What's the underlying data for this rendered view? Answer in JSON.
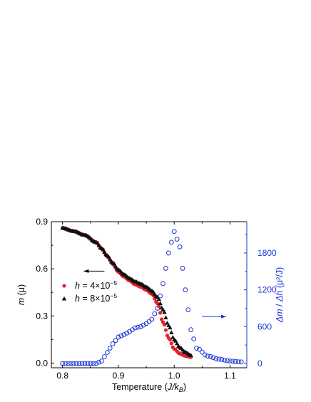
{
  "chart_data": {
    "type": "scatter",
    "xlabel": {
      "prefix": "Temperature  (",
      "italic": "J/k",
      "sub": "B",
      "suffix": ")"
    },
    "ylabel_left": {
      "italic": "m",
      "rest": " (μ)"
    },
    "ylabel_right": {
      "italic1": "Δm",
      "mid": " / ",
      "italic2": "Δh",
      "rest": " (μ²/J)"
    },
    "xlim": [
      0.78,
      1.13
    ],
    "ylim_left": [
      -0.03,
      0.9
    ],
    "ylim_right": [
      -70,
      2310
    ],
    "xticks": [
      {
        "value": 0.8,
        "label": "0.8"
      },
      {
        "value": 0.9,
        "label": "0.9"
      },
      {
        "value": 1.0,
        "label": "1.0"
      },
      {
        "value": 1.1,
        "label": "1.1"
      }
    ],
    "yticks_left": [
      {
        "value": 0.0,
        "label": "0.0"
      },
      {
        "value": 0.3,
        "label": "0.3"
      },
      {
        "value": 0.6,
        "label": "0.6"
      },
      {
        "value": 0.9,
        "label": "0.9"
      }
    ],
    "yticks_right": [
      {
        "value": 0,
        "label": "0"
      },
      {
        "value": 600,
        "label": "600"
      },
      {
        "value": 1200,
        "label": "1200"
      },
      {
        "value": 1800,
        "label": "1800"
      }
    ],
    "legend": [
      {
        "label_italic": "h",
        "label_text": " = 4×10",
        "label_sup": "−5",
        "color": "#e8202a",
        "marker": "circle-filled"
      },
      {
        "label_italic": "h",
        "label_text": " = 8×10",
        "label_sup": "−5",
        "color": "#111111",
        "marker": "triangle-filled"
      }
    ],
    "annotations": [
      {
        "type": "arrow",
        "direction": "left",
        "axis": "left",
        "x_from": 0.875,
        "x_to": 0.838,
        "y": 0.585,
        "color": "#000000"
      },
      {
        "type": "arrow",
        "direction": "right",
        "axis": "right",
        "x_from": 1.05,
        "x_to": 1.093,
        "y": 765,
        "color": "#1a35d6"
      }
    ],
    "series": [
      {
        "name": "h = 4×10−5",
        "axis": "left",
        "marker": "circle-filled",
        "color": "#e8202a",
        "x": [
          0.8,
          0.82,
          0.84,
          0.86,
          0.87,
          0.88,
          0.89,
          0.9,
          0.91,
          0.92,
          0.93,
          0.94,
          0.95,
          0.96,
          0.97,
          0.98,
          0.99,
          1.0,
          1.01,
          1.02,
          1.03
        ],
        "y": [
          0.86,
          0.84,
          0.815,
          0.77,
          0.73,
          0.68,
          0.63,
          0.58,
          0.55,
          0.525,
          0.5,
          0.485,
          0.465,
          0.44,
          0.38,
          0.26,
          0.16,
          0.09,
          0.06,
          0.045,
          0.038
        ]
      },
      {
        "name": "h = 8×10−5",
        "axis": "left",
        "marker": "triangle-filled",
        "color": "#111111",
        "x": [
          0.8,
          0.82,
          0.84,
          0.86,
          0.87,
          0.88,
          0.89,
          0.9,
          0.91,
          0.92,
          0.93,
          0.94,
          0.95,
          0.96,
          0.97,
          0.98,
          0.99,
          1.0,
          1.01,
          1.02,
          1.03
        ],
        "y": [
          0.86,
          0.84,
          0.815,
          0.77,
          0.73,
          0.685,
          0.64,
          0.595,
          0.565,
          0.54,
          0.52,
          0.505,
          0.485,
          0.46,
          0.42,
          0.34,
          0.24,
          0.15,
          0.1,
          0.07,
          0.05
        ]
      },
      {
        "axis": "right",
        "marker": "circle-open",
        "color": "#1a35d6",
        "x": [
          0.8,
          0.82,
          0.84,
          0.86,
          0.87,
          0.88,
          0.89,
          0.9,
          0.91,
          0.92,
          0.93,
          0.94,
          0.95,
          0.96,
          0.97,
          0.98,
          0.99,
          1.0,
          1.01,
          1.02,
          1.03,
          1.04,
          1.06,
          1.08,
          1.1,
          1.12
        ],
        "y": [
          0,
          0,
          0,
          0,
          40,
          180,
          320,
          430,
          470,
          520,
          580,
          600,
          650,
          720,
          900,
          1300,
          1800,
          2150,
          1900,
          1200,
          550,
          250,
          120,
          70,
          40,
          25
        ]
      }
    ]
  }
}
